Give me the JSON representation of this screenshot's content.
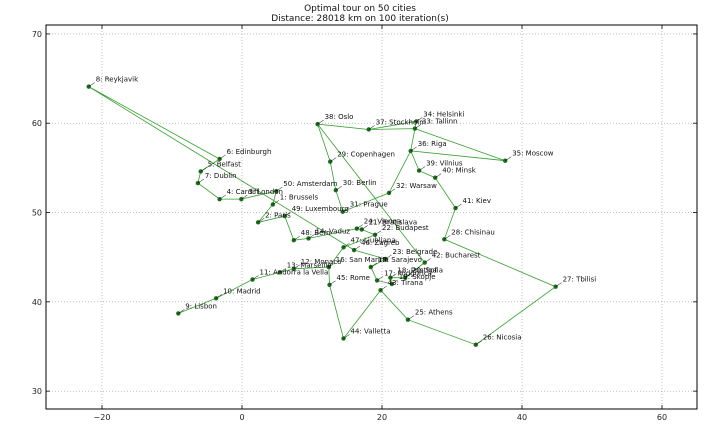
{
  "chart_data": {
    "type": "scatter",
    "title": "Optimal tour on 50 cities",
    "subtitle": "Distance: 28018 km on 100 iteration(s)",
    "xlim": [
      -28,
      65
    ],
    "ylim": [
      28,
      71
    ],
    "xticks": [
      -20,
      0,
      20,
      40,
      60
    ],
    "yticks": [
      30,
      40,
      50,
      60,
      70
    ],
    "grid": true,
    "colors": {
      "route": "#33a02c",
      "point": "#1a6b1a",
      "leader": "#000000"
    },
    "cities": [
      {
        "label": "1: Brussels",
        "x": 4.4,
        "y": 50.9
      },
      {
        "label": "2: Paris",
        "x": 2.3,
        "y": 48.9
      },
      {
        "label": "3: London",
        "x": -0.1,
        "y": 51.5
      },
      {
        "label": "4: Cardiff",
        "x": -3.2,
        "y": 51.5
      },
      {
        "label": "5: Belfast",
        "x": -5.9,
        "y": 54.6
      },
      {
        "label": "6: Edinburgh",
        "x": -3.2,
        "y": 56.0
      },
      {
        "label": "7: Dublin",
        "x": -6.3,
        "y": 53.3
      },
      {
        "label": "8: Reykjavik",
        "x": -21.9,
        "y": 64.1
      },
      {
        "label": "9: Lisbon",
        "x": -9.1,
        "y": 38.7
      },
      {
        "label": "10: Madrid",
        "x": -3.7,
        "y": 40.4
      },
      {
        "label": "11: Andorra la Vella",
        "x": 1.5,
        "y": 42.5
      },
      {
        "label": "12: Monaco",
        "x": 7.4,
        "y": 43.7
      },
      {
        "label": "13: Marseille",
        "x": 5.4,
        "y": 43.3
      },
      {
        "label": "14: Vaduz",
        "x": 9.5,
        "y": 47.1
      },
      {
        "label": "15: Sarajevo",
        "x": 18.4,
        "y": 43.9
      },
      {
        "label": "16: San Marino",
        "x": 12.4,
        "y": 43.9
      },
      {
        "label": "17: Podgorica",
        "x": 19.3,
        "y": 42.4
      },
      {
        "label": "18: Pristina",
        "x": 21.2,
        "y": 42.7
      },
      {
        "label": "19: Skopje",
        "x": 21.4,
        "y": 42.0
      },
      {
        "label": "20: Sofia",
        "x": 23.3,
        "y": 42.7
      },
      {
        "label": "21: Bratislava",
        "x": 17.1,
        "y": 48.1
      },
      {
        "label": "22: Budapest",
        "x": 19.0,
        "y": 47.5
      },
      {
        "label": "23: Belgrade",
        "x": 20.5,
        "y": 44.8
      },
      {
        "label": "24: Vienna",
        "x": 16.4,
        "y": 48.2
      },
      {
        "label": "25: Athens",
        "x": 23.7,
        "y": 38.0
      },
      {
        "label": "26: Nicosia",
        "x": 33.4,
        "y": 35.2
      },
      {
        "label": "27: Tbilisi",
        "x": 44.8,
        "y": 41.7
      },
      {
        "label": "28: Chisinau",
        "x": 28.9,
        "y": 47.0
      },
      {
        "label": "29: Copenhagen",
        "x": 12.6,
        "y": 55.7
      },
      {
        "label": "30: Berlin",
        "x": 13.4,
        "y": 52.5
      },
      {
        "label": "31: Prague",
        "x": 14.4,
        "y": 50.1
      },
      {
        "label": "32: Warsaw",
        "x": 21.0,
        "y": 52.2
      },
      {
        "label": "33: Tallinn",
        "x": 24.7,
        "y": 59.4
      },
      {
        "label": "34: Helsinki",
        "x": 24.9,
        "y": 60.2
      },
      {
        "label": "35: Moscow",
        "x": 37.6,
        "y": 55.8
      },
      {
        "label": "36: Riga",
        "x": 24.1,
        "y": 56.9
      },
      {
        "label": "37: Stockholm",
        "x": 18.1,
        "y": 59.3
      },
      {
        "label": "38: Oslo",
        "x": 10.8,
        "y": 59.9
      },
      {
        "label": "39: Vilnius",
        "x": 25.3,
        "y": 54.7
      },
      {
        "label": "40: Minsk",
        "x": 27.6,
        "y": 53.9
      },
      {
        "label": "41: Kiev",
        "x": 30.5,
        "y": 50.5
      },
      {
        "label": "42: Bucharest",
        "x": 26.1,
        "y": 44.4
      },
      {
        "label": "43: Tirana",
        "x": 19.8,
        "y": 41.3
      },
      {
        "label": "44: Valletta",
        "x": 14.5,
        "y": 35.9
      },
      {
        "label": "45: Rome",
        "x": 12.5,
        "y": 41.9
      },
      {
        "label": "46: Zagreb",
        "x": 16.0,
        "y": 45.8
      },
      {
        "label": "47: Ljubljana",
        "x": 14.5,
        "y": 46.1
      },
      {
        "label": "48: Bern",
        "x": 7.4,
        "y": 46.9
      },
      {
        "label": "49: Luxembourg",
        "x": 6.1,
        "y": 49.6
      },
      {
        "label": "50: Amsterdam",
        "x": 4.9,
        "y": 52.4
      }
    ],
    "tour": [
      8,
      6,
      5,
      7,
      4,
      3,
      50,
      1,
      2,
      49,
      48,
      14,
      24,
      21,
      22,
      47,
      16,
      12,
      13,
      11,
      10,
      9,
      10,
      11,
      13,
      12,
      16,
      45,
      44,
      43,
      25,
      26,
      27,
      28,
      41,
      40,
      39,
      36,
      35,
      33,
      34,
      37,
      38,
      29,
      30,
      31,
      32,
      36,
      33,
      37,
      38,
      42,
      20,
      18,
      19,
      17,
      15,
      23,
      46,
      8
    ]
  }
}
